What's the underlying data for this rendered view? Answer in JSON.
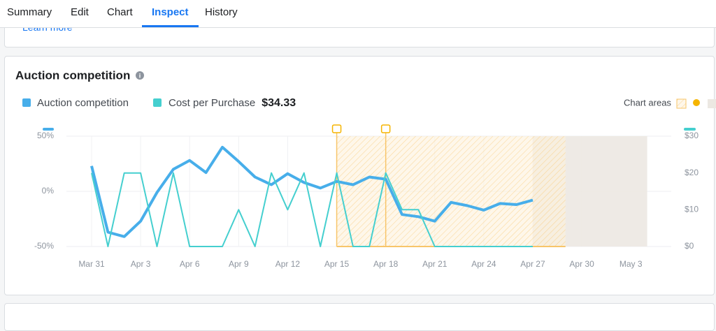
{
  "tabs": [
    {
      "label": "Summary",
      "active": false
    },
    {
      "label": "Edit",
      "active": false
    },
    {
      "label": "Chart",
      "active": false
    },
    {
      "label": "Inspect",
      "active": true
    },
    {
      "label": "History",
      "active": false
    }
  ],
  "top_card": {
    "link": "Learn more"
  },
  "card": {
    "title": "Auction competition",
    "chart_areas_label": "Chart areas",
    "metric_value": "$34.33"
  },
  "chart_data": {
    "type": "line",
    "categories": [
      "Mar 31",
      null,
      null,
      "Apr 3",
      null,
      null,
      "Apr 6",
      null,
      null,
      "Apr 9",
      null,
      null,
      "Apr 12",
      null,
      null,
      "Apr 15",
      null,
      null,
      "Apr 18",
      null,
      null,
      "Apr 21",
      null,
      null,
      "Apr 24",
      null,
      null,
      "Apr 27",
      null,
      null,
      "Apr 30",
      null,
      null,
      "May 3"
    ],
    "series": [
      {
        "name": "Auction competition",
        "color": "#47aeea",
        "axis": "y",
        "values": [
          23,
          -37,
          -41,
          -27,
          -1,
          20,
          28,
          17,
          40,
          27,
          13,
          6,
          16,
          8,
          3,
          9,
          6,
          13,
          11,
          -21,
          -23,
          -27,
          -10,
          -13,
          -17,
          -11,
          -12,
          -8,
          null,
          null,
          null,
          null,
          null,
          null
        ]
      },
      {
        "name": "Cost per Purchase",
        "color": "#45cfcf",
        "axis": "y2",
        "values": [
          20,
          0,
          20,
          20,
          0,
          20,
          0,
          0,
          0,
          10,
          0,
          20,
          10,
          20,
          0,
          20,
          0,
          0,
          20,
          10,
          10,
          0,
          0,
          0,
          0,
          0,
          0,
          0,
          null,
          null,
          null,
          null,
          null,
          null
        ]
      }
    ],
    "ylim": [
      -50,
      50
    ],
    "yticks": [
      {
        "value": -50,
        "label": "-50%"
      },
      {
        "value": 0,
        "label": "0%"
      },
      {
        "value": 50,
        "label": "50%"
      }
    ],
    "y2lim": [
      0,
      30
    ],
    "y2ticks": [
      {
        "value": 0,
        "label": "$0"
      },
      {
        "value": 10,
        "label": "$10"
      },
      {
        "value": 20,
        "label": "$20"
      },
      {
        "value": 30,
        "label": "$30"
      }
    ],
    "areas": [
      {
        "from": 27,
        "to": 34,
        "color": "#ece8e2"
      },
      {
        "from": 15,
        "to": 29,
        "color": "#f7c56a"
      }
    ],
    "markers": [
      15,
      18
    ],
    "grid": true
  }
}
